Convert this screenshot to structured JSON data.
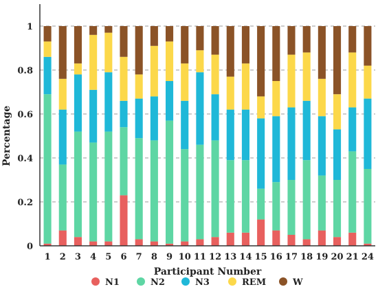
{
  "chart_data": {
    "type": "bar",
    "stacked": true,
    "title": "",
    "xlabel": "Participant Number",
    "ylabel": "Percentage",
    "ylim": [
      0,
      1
    ],
    "yticks": [
      "0",
      "0.2",
      "0.4",
      "0.6",
      "0.8",
      "1"
    ],
    "yticks_values": [
      0,
      0.2,
      0.4,
      0.6,
      0.8,
      1
    ],
    "grid": "horizontal-dashed",
    "legend_position": "bottom",
    "categories": [
      "1",
      "2",
      "3",
      "4",
      "5",
      "6",
      "7",
      "8",
      "9",
      "10",
      "11",
      "12",
      "13",
      "14",
      "15",
      "16",
      "17",
      "18",
      "19",
      "20",
      "21",
      "24"
    ],
    "series": [
      {
        "name": "N1",
        "color": "#e8605e",
        "values": [
          0.01,
          0.07,
          0.04,
          0.02,
          0.02,
          0.23,
          0.03,
          0.02,
          0.01,
          0.02,
          0.03,
          0.04,
          0.06,
          0.06,
          0.12,
          0.07,
          0.05,
          0.03,
          0.07,
          0.04,
          0.06,
          0.01
        ]
      },
      {
        "name": "N2",
        "color": "#5ed6a4",
        "values": [
          0.68,
          0.3,
          0.48,
          0.45,
          0.5,
          0.31,
          0.46,
          0.46,
          0.56,
          0.42,
          0.43,
          0.44,
          0.33,
          0.33,
          0.14,
          0.22,
          0.25,
          0.36,
          0.25,
          0.26,
          0.37,
          0.34
        ]
      },
      {
        "name": "N3",
        "color": "#1fb8d8",
        "values": [
          0.17,
          0.25,
          0.26,
          0.24,
          0.27,
          0.12,
          0.18,
          0.2,
          0.18,
          0.22,
          0.33,
          0.21,
          0.23,
          0.23,
          0.32,
          0.3,
          0.33,
          0.27,
          0.27,
          0.23,
          0.2,
          0.32
        ]
      },
      {
        "name": "REM",
        "color": "#fcd84a",
        "values": [
          0.07,
          0.14,
          0.05,
          0.25,
          0.18,
          0.2,
          0.11,
          0.23,
          0.18,
          0.17,
          0.1,
          0.18,
          0.15,
          0.21,
          0.1,
          0.16,
          0.24,
          0.22,
          0.17,
          0.16,
          0.25,
          0.15
        ]
      },
      {
        "name": "W",
        "color": "#8b5327",
        "values": [
          0.07,
          0.24,
          0.17,
          0.04,
          0.03,
          0.14,
          0.22,
          0.09,
          0.07,
          0.17,
          0.11,
          0.13,
          0.23,
          0.17,
          0.32,
          0.25,
          0.13,
          0.12,
          0.24,
          0.31,
          0.12,
          0.18
        ]
      }
    ]
  }
}
